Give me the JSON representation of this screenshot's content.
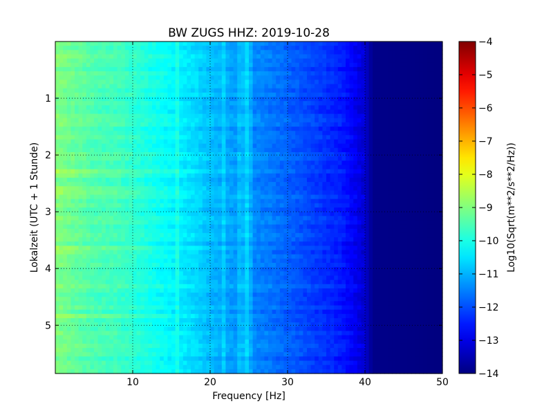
{
  "chart_data": {
    "type": "heatmap",
    "title": "BW ZUGS HHZ: 2019-10-28",
    "xlabel": "Frequency [Hz]",
    "ylabel": "Lokalzeit (UTC + 1 Stunde)",
    "xlim": [
      0,
      50
    ],
    "ylim": [
      5.85,
      0
    ],
    "x_ticks": [
      10,
      20,
      30,
      40,
      50
    ],
    "y_ticks": [
      1,
      2,
      3,
      4,
      5
    ],
    "grid": true,
    "colormap": "jet",
    "colorbar": {
      "label": "Log10(Sqrt(m**2/s**2/Hz))",
      "range": [
        -14,
        -4
      ],
      "ticks": [
        -14,
        -13,
        -12,
        -11,
        -10,
        -9,
        -8,
        -7,
        -6,
        -5,
        -4
      ]
    },
    "spectral_profile": {
      "frequency_hz": [
        0,
        2,
        5,
        8,
        10,
        12,
        15,
        18,
        20,
        22,
        25,
        28,
        30,
        32,
        35,
        37,
        38.5,
        40,
        41,
        50
      ],
      "log10_amplitude": [
        -9.0,
        -9.2,
        -9.5,
        -9.6,
        -9.8,
        -10.0,
        -10.3,
        -10.6,
        -10.9,
        -11.1,
        -11.4,
        -11.6,
        -11.8,
        -12.0,
        -12.3,
        -12.5,
        -12.8,
        -13.2,
        -13.9,
        -14.0
      ]
    },
    "features": {
      "noise_cutoff_hz": 40,
      "spectral_lines_hz": [
        15.8,
        21.8,
        23.6,
        24.5,
        25.0
      ],
      "bright_bands_hours": [
        2.35,
        2.65,
        3.7
      ],
      "strong_line_hour": 4.82
    }
  }
}
